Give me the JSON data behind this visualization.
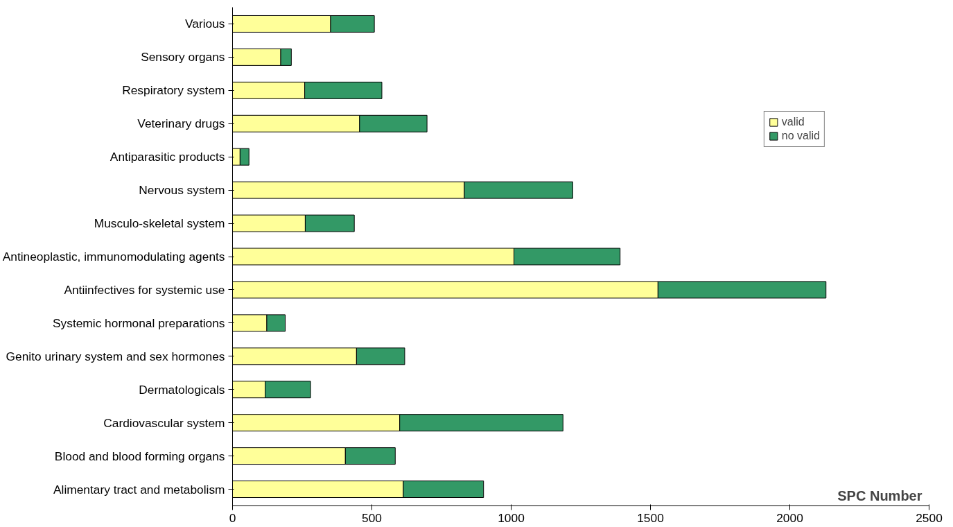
{
  "chart_data": {
    "type": "bar",
    "orientation": "horizontal",
    "stacked": true,
    "xlabel": "SPC Number",
    "categories": [
      "Various",
      "Sensory organs",
      "Respiratory system",
      "Veterinary drugs",
      "Antiparasitic products",
      "Nervous system",
      "Musculo-skeletal system",
      "Antineoplastic, immunomodulating agents",
      "Antiinfectives for systemic use",
      "Systemic hormonal preparations",
      "Genito urinary system and sex hormones",
      "Dermatologicals",
      "Cardiovascular system",
      "Blood and blood forming organs",
      "Alimentary tract and metabolism"
    ],
    "series": [
      {
        "name": "valid",
        "color": "#ffff99",
        "values": [
          352,
          173,
          259,
          456,
          27,
          832,
          261,
          1010,
          1527,
          123,
          445,
          117,
          600,
          405,
          613
        ]
      },
      {
        "name": "no valid",
        "color": "#339966",
        "values": [
          157,
          38,
          277,
          242,
          32,
          389,
          176,
          381,
          603,
          66,
          173,
          163,
          586,
          179,
          288
        ]
      }
    ],
    "xlim": [
      0,
      2500
    ],
    "xticks": [
      0,
      500,
      1000,
      1500,
      2000,
      2500
    ],
    "grid": false,
    "legend": "top right"
  }
}
